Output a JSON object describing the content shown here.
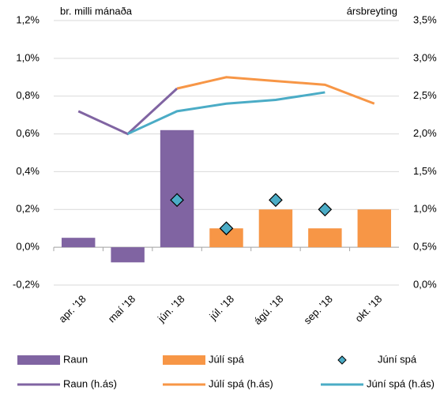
{
  "chart_data": {
    "type": "bar",
    "y_label": "br. milli mánaða",
    "y2_label": "ársbreyting",
    "categories": [
      "apr. '18",
      "maí '18",
      "jún. '18",
      "júl. '18",
      "ágú. '18",
      "sep. '18",
      "okt. '18"
    ],
    "series": [
      {
        "name": "Raun",
        "type": "bar",
        "color": "#8064a2",
        "values": [
          0.05,
          -0.08,
          0.62,
          null,
          null,
          null,
          null
        ]
      },
      {
        "name": "Júlí spá",
        "type": "bar",
        "color": "#f79646",
        "values": [
          null,
          null,
          null,
          0.1,
          0.2,
          0.1,
          0.2
        ]
      },
      {
        "name": "Júní spá",
        "type": "scatter",
        "color": "#4bacc6",
        "values": [
          null,
          null,
          0.25,
          0.1,
          0.25,
          0.2,
          null
        ]
      },
      {
        "name": "Raun (h.ás)",
        "type": "line",
        "axis": "y2",
        "color": "#8064a2",
        "values": [
          2.3,
          2.0,
          2.6,
          null,
          null,
          null,
          null
        ]
      },
      {
        "name": "Júlí spá (h.ás)",
        "type": "line",
        "axis": "y2",
        "color": "#f79646",
        "values": [
          null,
          null,
          2.6,
          2.75,
          2.7,
          2.65,
          2.4
        ]
      },
      {
        "name": "Júní spá (h.ás)",
        "type": "line",
        "axis": "y2",
        "color": "#4bacc6",
        "values": [
          null,
          2.0,
          2.3,
          2.4,
          2.45,
          2.55,
          null
        ]
      }
    ],
    "ylim": [
      -0.2,
      1.2
    ],
    "yticks": [
      {
        "value": -0.2,
        "label": "-0,2%"
      },
      {
        "value": 0,
        "label": "0,0%"
      },
      {
        "value": 0.2,
        "label": "0,2%"
      },
      {
        "value": 0.4,
        "label": "0,4%"
      },
      {
        "value": 0.6,
        "label": "0,6%"
      },
      {
        "value": 0.8,
        "label": "0,8%"
      },
      {
        "value": 1.0,
        "label": "1,0%"
      },
      {
        "value": 1.2,
        "label": "1,2%"
      }
    ],
    "y2lim": [
      0,
      3.5
    ],
    "y2ticks": [
      {
        "value": 0,
        "label": "0,0%"
      },
      {
        "value": 0.5,
        "label": "0,5%"
      },
      {
        "value": 1.0,
        "label": "1,0%"
      },
      {
        "value": 1.5,
        "label": "1,5%"
      },
      {
        "value": 2.0,
        "label": "2,0%"
      },
      {
        "value": 2.5,
        "label": "2,5%"
      },
      {
        "value": 3.0,
        "label": "3,0%"
      },
      {
        "value": 3.5,
        "label": "3,5%"
      }
    ],
    "grid": true
  }
}
